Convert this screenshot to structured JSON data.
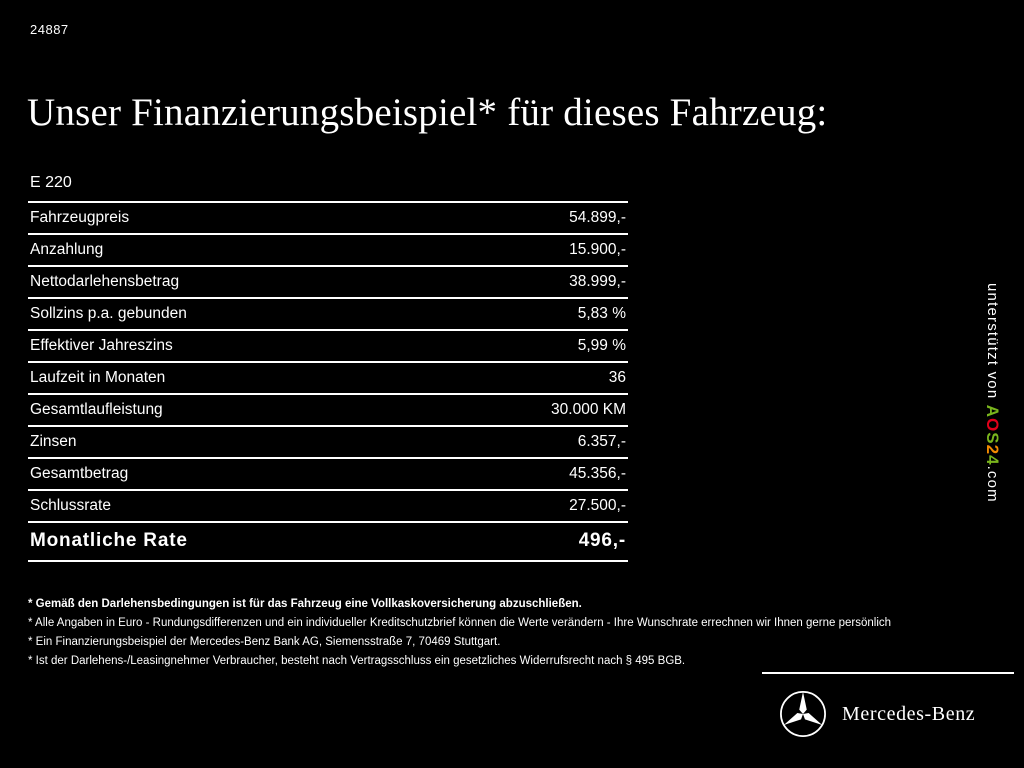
{
  "page": {
    "id_number": "24887",
    "title": "Unser Finanzierungsbeispiel* für dieses Fahrzeug:"
  },
  "table": {
    "model": "E 220",
    "rows": [
      {
        "label": "Fahrzeugpreis",
        "value": "54.899,-"
      },
      {
        "label": "Anzahlung",
        "value": "15.900,-"
      },
      {
        "label": "Nettodarlehensbetrag",
        "value": "38.999,-"
      },
      {
        "label": "Sollzins p.a. gebunden",
        "value": "5,83 %"
      },
      {
        "label": "Effektiver Jahreszins",
        "value": "5,99 %"
      },
      {
        "label": "Laufzeit in Monaten",
        "value": "36"
      },
      {
        "label": "Gesamtlaufleistung",
        "value": "30.000 KM"
      },
      {
        "label": "Zinsen",
        "value": "6.357,-"
      },
      {
        "label": "Gesamtbetrag",
        "value": "45.356,-"
      },
      {
        "label": "Schlussrate",
        "value": "27.500,-"
      }
    ],
    "total_row": {
      "label": "Monatliche Rate",
      "value": "496,-"
    }
  },
  "footnotes": [
    "* Gemäß den Darlehensbedingungen ist für das Fahrzeug eine Vollkaskoversicherung abzuschließen.",
    "* Alle Angaben in Euro - Rundungsdifferenzen und ein individueller Kreditschutzbrief können die Werte verändern - Ihre Wunschrate errechnen wir Ihnen gerne persönlich",
    "* Ein Finanzierungsbeispiel der Mercedes-Benz Bank AG, Siemensstraße 7, 70469 Stuttgart.",
    "* Ist der Darlehens-/Leasingnehmer Verbraucher, besteht nach Vertragsschluss ein gesetzliches Widerrufsrecht nach § 495 BGB."
  ],
  "sidebar": {
    "supported_by": "unterstützt von ",
    "brand_letters": [
      {
        "char": "A",
        "color": "#7ab51d"
      },
      {
        "char": "O",
        "color": "#e2001a"
      },
      {
        "char": "S",
        "color": "#7ab51d"
      },
      {
        "char": "2",
        "color": "#f18a00"
      },
      {
        "char": "4",
        "color": "#7ab51d"
      }
    ],
    "domain_suffix": ".com"
  },
  "footer": {
    "brand": "Mercedes-Benz",
    "logo_icon": "mercedes-star-icon"
  },
  "colors": {
    "background": "#000000",
    "text": "#ffffff",
    "rule": "#ffffff"
  }
}
